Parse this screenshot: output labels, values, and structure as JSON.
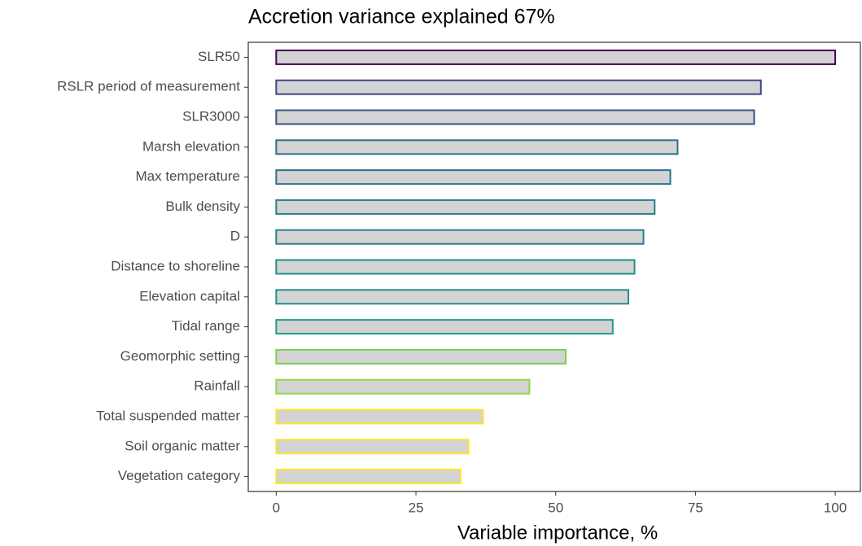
{
  "chart_data": {
    "type": "barh",
    "title": "Accretion variance explained 67%",
    "x_label": "Variable importance, %",
    "categories": [
      "SLR50",
      "RSLR period of measurement",
      "SLR3000",
      "Marsh elevation",
      "Max temperature",
      "Bulk density",
      "D",
      "Distance to shoreline",
      "Elevation capital",
      "Tidal range",
      "Geomorphic setting",
      "Rainfall",
      "Total suspended matter",
      "Soil organic matter",
      "Vegetation category"
    ],
    "values": [
      100,
      86.7,
      85.5,
      71.8,
      70.5,
      67.7,
      65.7,
      64.1,
      63,
      60.2,
      51.8,
      45.3,
      37,
      34.4,
      33
    ],
    "colors": [
      "#440154",
      "#414487",
      "#3b528b",
      "#2c728e",
      "#2c728e",
      "#287d8e",
      "#26828e",
      "#218f8d",
      "#21908c",
      "#1f9e89",
      "#7ad151",
      "#8fd744",
      "#fde725",
      "#fde725",
      "#fde725"
    ],
    "fill": "#d3d3d3",
    "xlim": [
      -5,
      104.5
    ],
    "xticks": [
      0,
      25,
      50,
      75,
      100
    ]
  }
}
